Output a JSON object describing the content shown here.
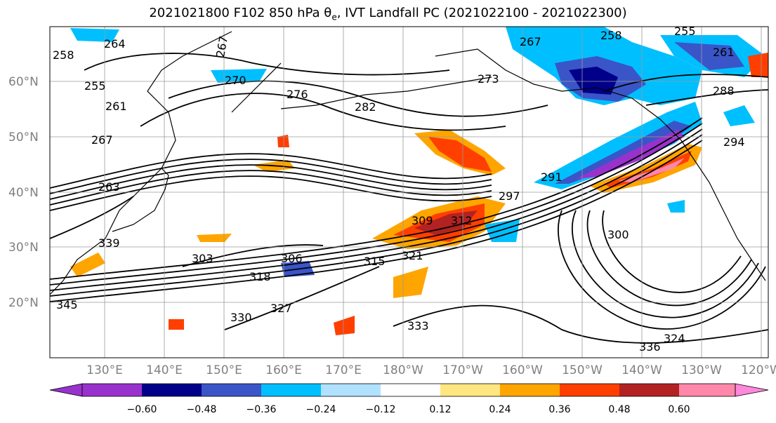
{
  "title": "2021021800 F102 850 hPa θe, IVT Landfall PC (2021022100 - 2021022300)",
  "map": {
    "lat_ticks": [
      "20°N",
      "30°N",
      "40°N",
      "50°N",
      "60°N"
    ],
    "lon_ticks": [
      "130°E",
      "140°E",
      "150°E",
      "160°E",
      "170°E",
      "180°W",
      "170°W",
      "160°W",
      "150°W",
      "140°W",
      "130°W",
      "120°W"
    ],
    "contour_labels": [
      "264",
      "267",
      "258",
      "255",
      "261",
      "267",
      "263",
      "270",
      "276",
      "273",
      "282",
      "258",
      "255",
      "267",
      "261",
      "288",
      "291",
      "294",
      "297",
      "300",
      "303",
      "306",
      "309",
      "312",
      "315",
      "318",
      "321",
      "324",
      "327",
      "330",
      "333",
      "336",
      "339",
      "345"
    ]
  },
  "colorbar": {
    "tick_labels": [
      "−0.60",
      "−0.48",
      "−0.36",
      "−0.24",
      "−0.12",
      "0.12",
      "0.24",
      "0.36",
      "0.48",
      "0.60"
    ],
    "colors": [
      "#9932cc",
      "#00008b",
      "#3a55c8",
      "#00bfff",
      "#b0e2ff",
      "#ffffff",
      "#ffe680",
      "#ffa500",
      "#ff3f00",
      "#b22222",
      "#ff88aa",
      "#ff88dd"
    ]
  }
}
